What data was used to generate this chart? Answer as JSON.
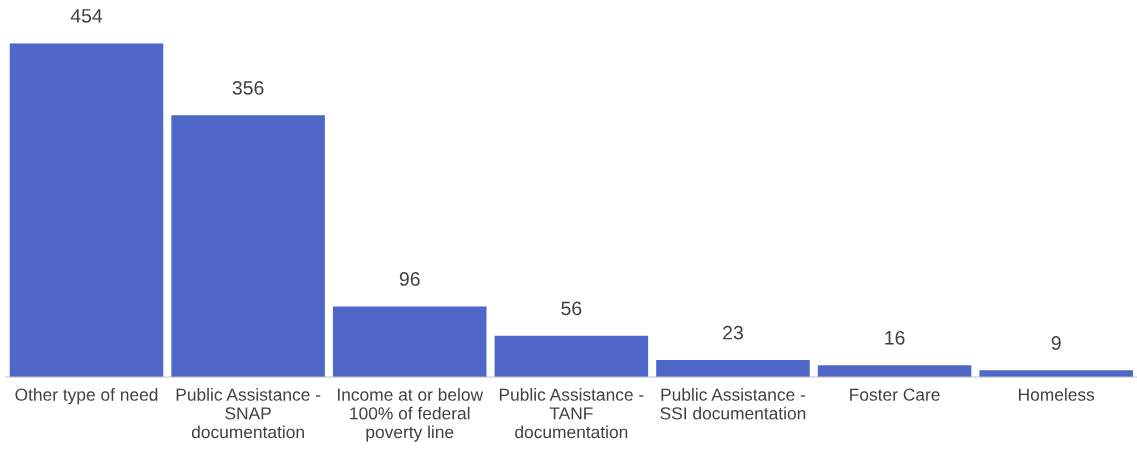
{
  "chart_data": {
    "type": "bar",
    "categories": [
      "Other type of need",
      "Public Assistance -\nSNAP\ndocumentation",
      "Income at or below\n100% of federal\npoverty line",
      "Public Assistance -\nTANF\ndocumentation",
      "Public Assistance -\nSSI documentation",
      "Foster Care",
      "Homeless"
    ],
    "values": [
      454,
      356,
      96,
      56,
      23,
      16,
      9
    ],
    "color": "#4f67c9",
    "data_labels": true,
    "grid": false,
    "legend": false
  }
}
